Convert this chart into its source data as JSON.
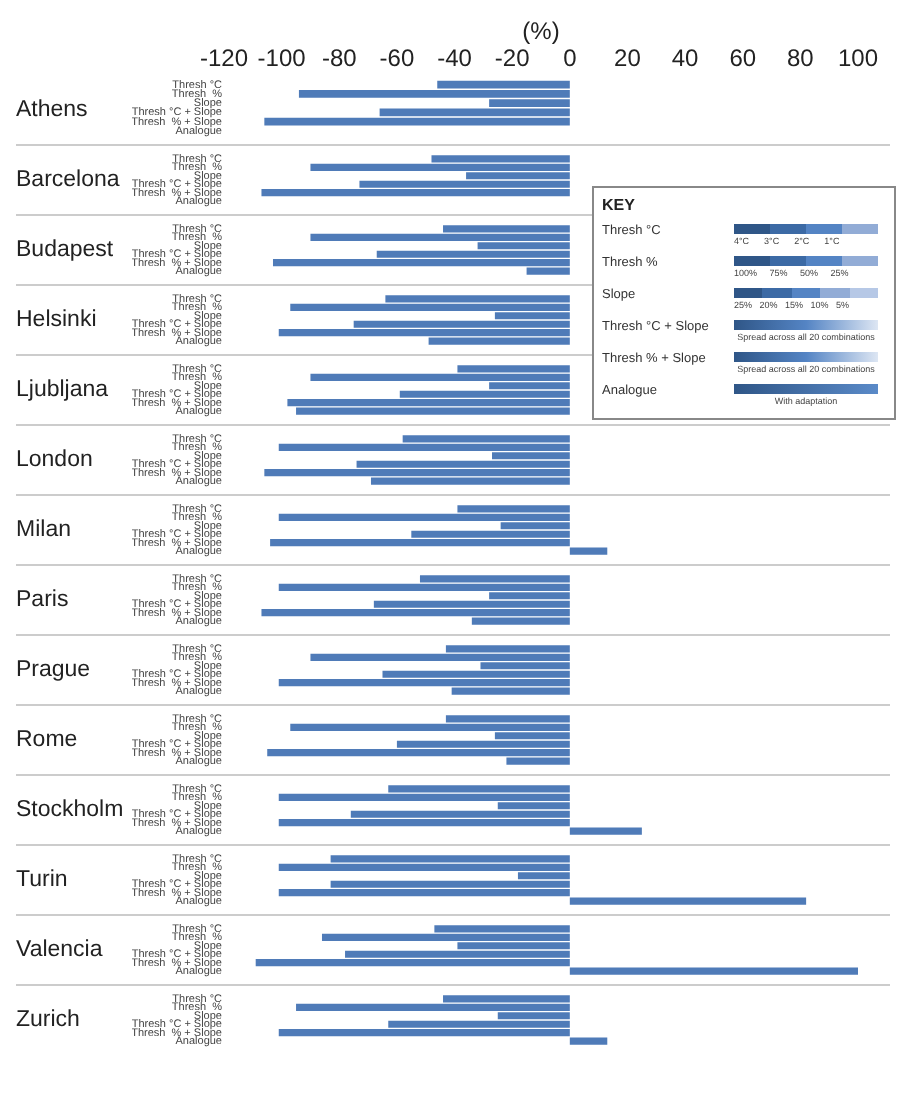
{
  "chart_data": [
    {
      "type": "bar",
      "orientation": "horizontal",
      "title": "Athens",
      "xlabel": "(%)",
      "categories": [
        "Thresh °C",
        "Thresh  %",
        "Slope",
        "Thresh °C + Slope",
        "Thresh  % + Slope",
        "Analogue"
      ],
      "values": [
        -46,
        -94,
        -28,
        -66,
        -106,
        null
      ],
      "color": "#4f7bb8",
      "xlim": [
        -120,
        100
      ],
      "xticks": [
        -120,
        -100,
        -80,
        -60,
        -40,
        -20,
        0,
        20,
        40,
        60,
        80,
        100
      ],
      "grid": false
    },
    {
      "type": "bar",
      "orientation": "horizontal",
      "title": "Barcelona",
      "categories": [
        "Thresh °C",
        "Thresh  %",
        "Slope",
        "Thresh °C + Slope",
        "Thresh  % + Slope",
        "Analogue"
      ],
      "values": [
        -48,
        -90,
        -36,
        -73,
        -107,
        null
      ],
      "color": "#4f7bb8",
      "xlim": [
        -120,
        100
      ],
      "tick_labels": "y",
      "grid": false
    },
    {
      "type": "bar",
      "orientation": "horizontal",
      "title": "Budapest",
      "categories": [
        "Thresh °C",
        "Thresh  %",
        "Slope",
        "Thresh °C + Slope",
        "Thresh  % + Slope",
        "Analogue"
      ],
      "values": [
        -44,
        -90,
        -32,
        -67,
        -103,
        -15
      ],
      "color": "#4f7bb8",
      "xlim": [
        -120,
        100
      ],
      "tick_labels": "y",
      "grid": false
    },
    {
      "type": "bar",
      "orientation": "horizontal",
      "title": "Helsinki",
      "categories": [
        "Thresh °C",
        "Thresh  %",
        "Slope",
        "Thresh °C + Slope",
        "Thresh  % + Slope",
        "Analogue"
      ],
      "values": [
        -64,
        -97,
        -26,
        -75,
        -101,
        -49
      ],
      "color": "#4f7bb8",
      "xlim": [
        -120,
        100
      ],
      "tick_labels": "y",
      "grid": false
    },
    {
      "type": "bar",
      "orientation": "horizontal",
      "title": "Ljubljana",
      "categories": [
        "Thresh °C",
        "Thresh  %",
        "Slope",
        "Thresh °C + Slope",
        "Thresh  % + Slope",
        "Analogue"
      ],
      "values": [
        -39,
        -90,
        -28,
        -59,
        -98,
        -95
      ],
      "color": "#4f7bb8",
      "xlim": [
        -120,
        100
      ],
      "tick_labels": "y",
      "grid": false
    },
    {
      "type": "bar",
      "orientation": "horizontal",
      "title": "London",
      "categories": [
        "Thresh °C",
        "Thresh  %",
        "Slope",
        "Thresh °C + Slope",
        "Thresh  % + Slope",
        "Analogue"
      ],
      "values": [
        -58,
        -101,
        -27,
        -74,
        -106,
        -69
      ],
      "color": "#4f7bb8",
      "xlim": [
        -120,
        100
      ],
      "tick_labels": "y",
      "grid": false
    },
    {
      "type": "bar",
      "orientation": "horizontal",
      "title": "Milan",
      "categories": [
        "Thresh °C",
        "Thresh  %",
        "Slope",
        "Thresh °C + Slope",
        "Thresh  % + Slope",
        "Analogue"
      ],
      "values": [
        -39,
        -101,
        -24,
        -55,
        -104,
        13
      ],
      "color": "#4f7bb8",
      "xlim": [
        -120,
        100
      ],
      "tick_labels": "y",
      "grid": false
    },
    {
      "type": "bar",
      "orientation": "horizontal",
      "title": "Paris",
      "categories": [
        "Thresh °C",
        "Thresh  %",
        "Slope",
        "Thresh °C + Slope",
        "Thresh  % + Slope",
        "Analogue"
      ],
      "values": [
        -52,
        -101,
        -28,
        -68,
        -107,
        -34
      ],
      "color": "#4f7bb8",
      "xlim": [
        -120,
        100
      ],
      "tick_labels": "y",
      "grid": false
    },
    {
      "type": "bar",
      "orientation": "horizontal",
      "title": "Prague",
      "categories": [
        "Thresh °C",
        "Thresh  %",
        "Slope",
        "Thresh °C + Slope",
        "Thresh  % + Slope",
        "Analogue"
      ],
      "values": [
        -43,
        -90,
        -31,
        -65,
        -101,
        -41
      ],
      "color": "#4f7bb8",
      "xlim": [
        -120,
        100
      ],
      "tick_labels": "y",
      "grid": false
    },
    {
      "type": "bar",
      "orientation": "horizontal",
      "title": "Rome",
      "categories": [
        "Thresh °C",
        "Thresh  %",
        "Slope",
        "Thresh °C + Slope",
        "Thresh  % + Slope",
        "Analogue"
      ],
      "values": [
        -43,
        -97,
        -26,
        -60,
        -105,
        -22
      ],
      "color": "#4f7bb8",
      "xlim": [
        -120,
        100
      ],
      "tick_labels": "y",
      "grid": false
    },
    {
      "type": "bar",
      "orientation": "horizontal",
      "title": "Stockholm",
      "categories": [
        "Thresh °C",
        "Thresh  %",
        "Slope",
        "Thresh °C + Slope",
        "Thresh  % + Slope",
        "Analogue"
      ],
      "values": [
        -63,
        -101,
        -25,
        -76,
        -101,
        25
      ],
      "color": "#4f7bb8",
      "xlim": [
        -120,
        100
      ],
      "tick_labels": "y",
      "grid": false
    },
    {
      "type": "bar",
      "orientation": "horizontal",
      "title": "Turin",
      "categories": [
        "Thresh °C",
        "Thresh  %",
        "Slope",
        "Thresh °C + Slope",
        "Thresh  % + Slope",
        "Analogue"
      ],
      "values": [
        -83,
        -101,
        -18,
        -83,
        -101,
        82
      ],
      "color": "#4f7bb8",
      "xlim": [
        -120,
        100
      ],
      "tick_labels": "y",
      "grid": false
    },
    {
      "type": "bar",
      "orientation": "horizontal",
      "title": "Valencia",
      "categories": [
        "Thresh °C",
        "Thresh  %",
        "Slope",
        "Thresh °C + Slope",
        "Thresh  % + Slope",
        "Analogue"
      ],
      "values": [
        -47,
        -86,
        -39,
        -78,
        -109,
        100
      ],
      "color": "#4f7bb8",
      "xlim": [
        -120,
        100
      ],
      "tick_labels": "y",
      "grid": false
    },
    {
      "type": "bar",
      "orientation": "horizontal",
      "title": "Zurich",
      "categories": [
        "Thresh °C",
        "Thresh  %",
        "Slope",
        "Thresh °C + Slope",
        "Thresh  % + Slope",
        "Analogue"
      ],
      "values": [
        -44,
        -95,
        -25,
        -63,
        -101,
        13
      ],
      "color": "#4f7bb8",
      "xlim": [
        -120,
        100
      ],
      "tick_labels": "y",
      "grid": false
    },
    {
      "type": "other",
      "title": "KEY",
      "categories": [
        "Thresh °C",
        "Thresh %",
        "Slope",
        "Thresh °C + Slope",
        "Thresh % + Slope",
        "Analogue"
      ],
      "annotations": [
        "4°C      3°C      2°C      1°C",
        "100%     75%     50%     25%",
        "25%   20%   15%   10%   5%",
        "Spread across all 20 combinations",
        "Spread across all 20 combinations",
        "With adaptation"
      ]
    }
  ]
}
